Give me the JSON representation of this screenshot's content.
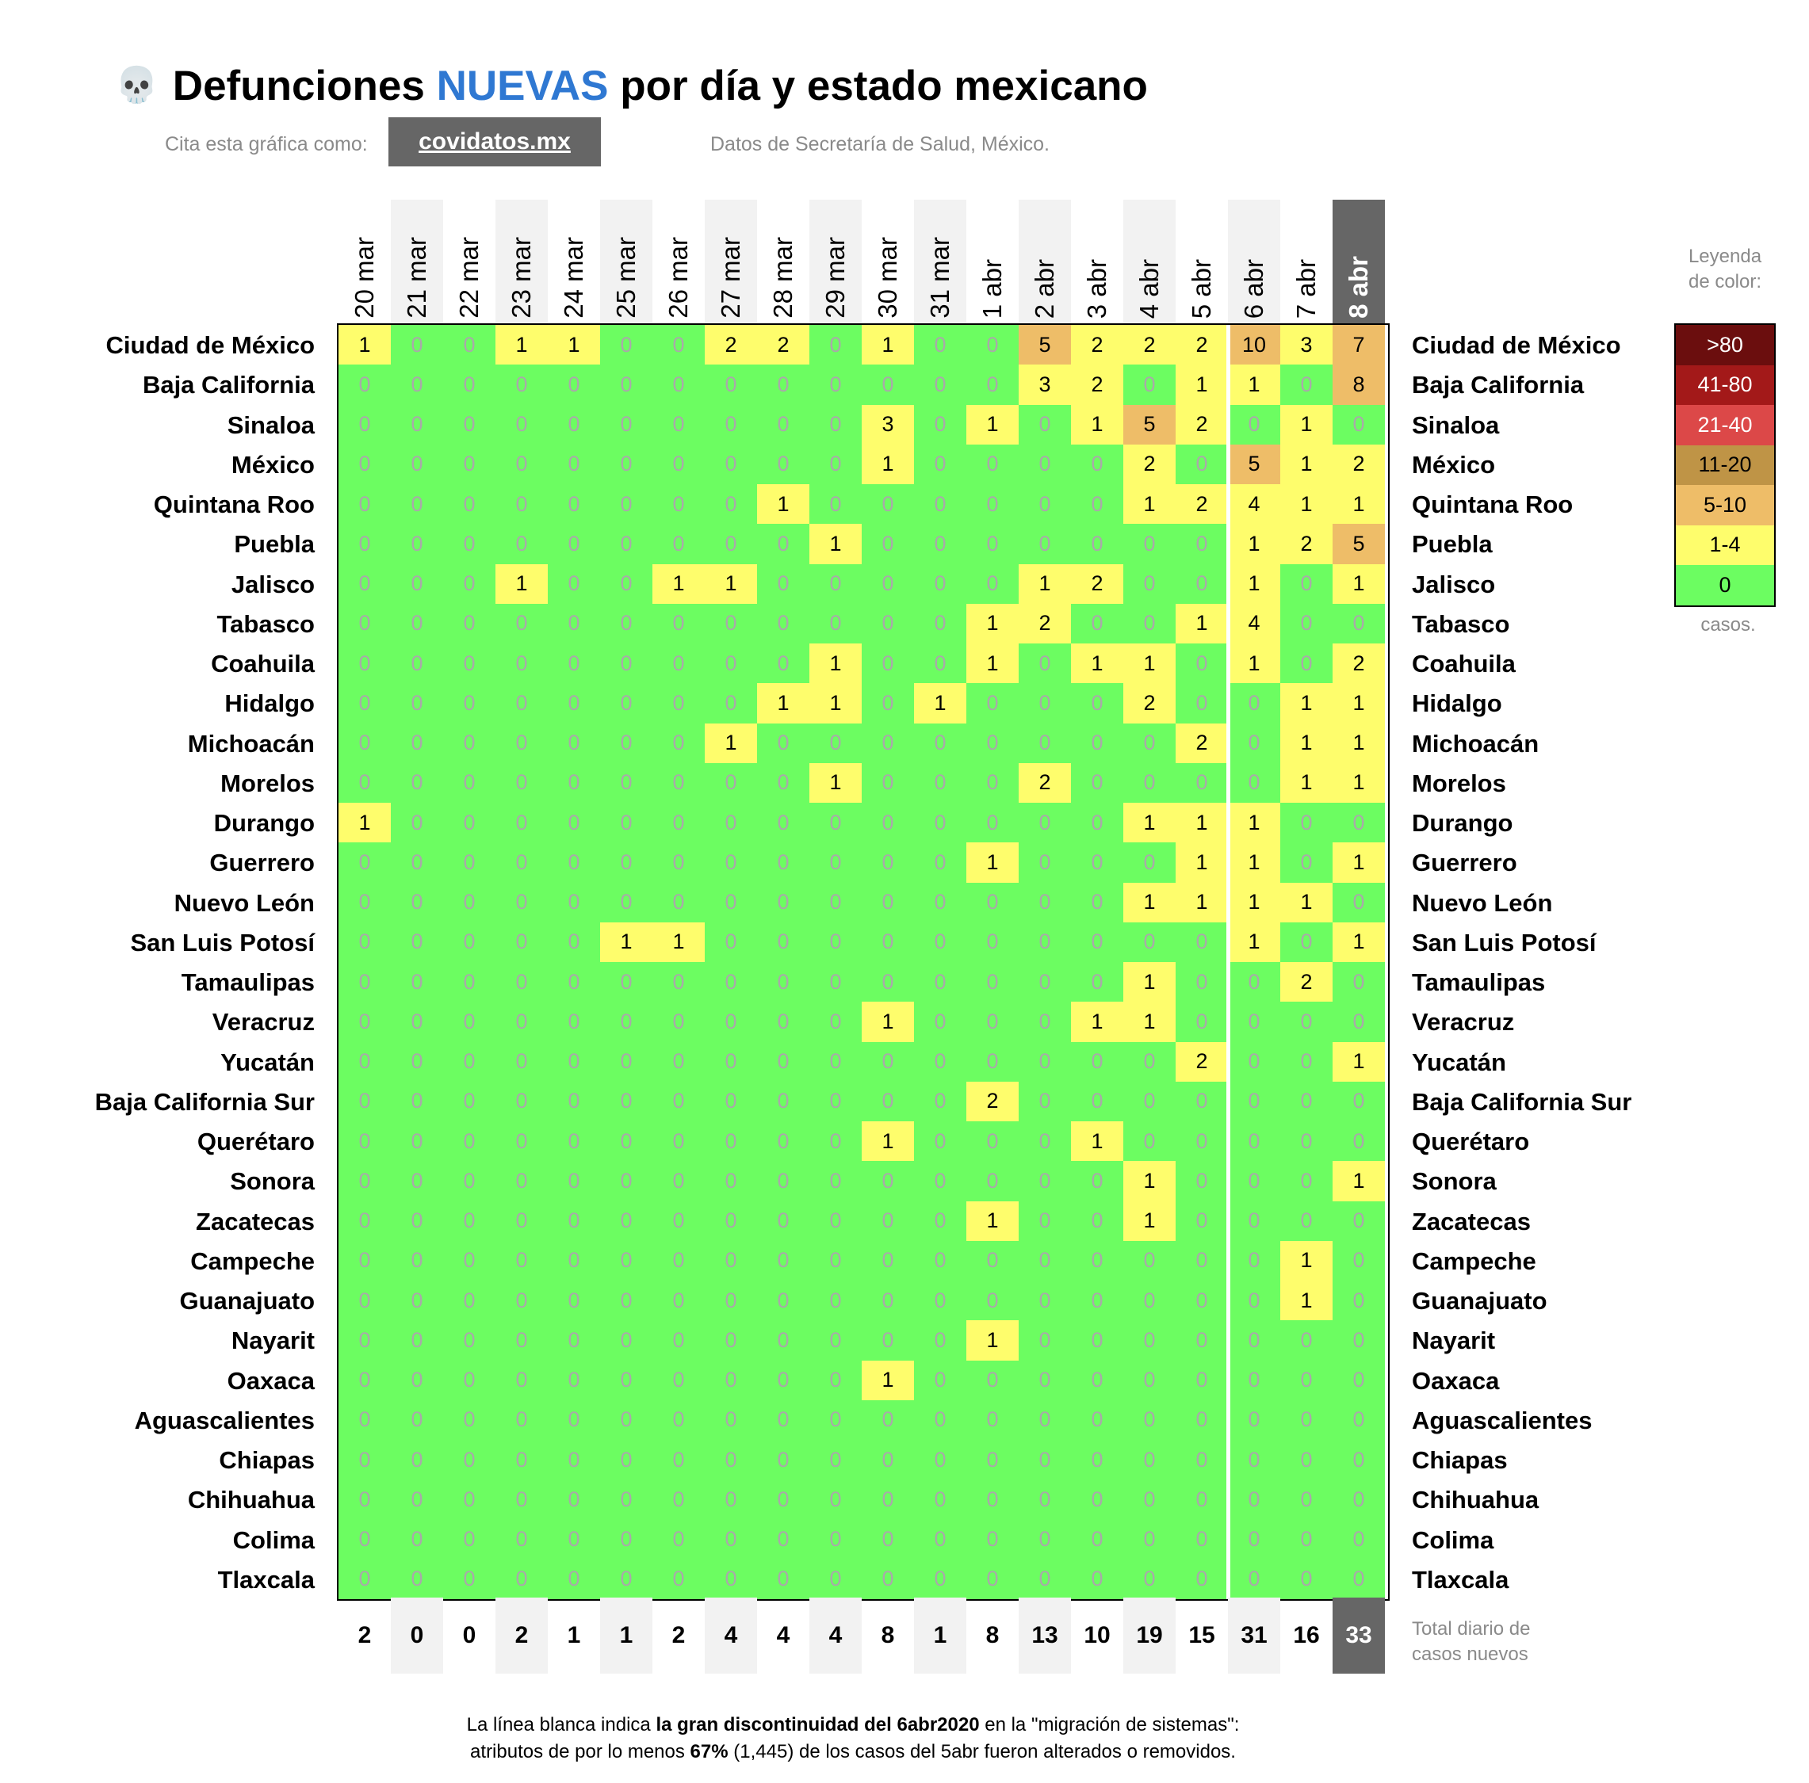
{
  "title": {
    "icon": "skull-icon",
    "glyph": "💀",
    "pre": "Defunciones ",
    "highlight": "NUEVAS",
    "post": " por día y estado mexicano"
  },
  "cite_label": "Cita esta gráfica como:",
  "cite_link": "covidatos.mx",
  "source": "Datos de Secretaría de Salud, México.",
  "legend": {
    "title_lines": [
      "Leyenda",
      "de color:"
    ],
    "footer": "casos.",
    "items": [
      {
        "label": ">80",
        "color": "#6b0e0e",
        "text_color": "#ffffff"
      },
      {
        "label": "41-80",
        "color": "#a31919",
        "text_color": "#ffffff"
      },
      {
        "label": "21-40",
        "color": "#dc4848",
        "text_color": "#ffffff"
      },
      {
        "label": "11-20",
        "color": "#bf9446",
        "text_color": "#000000"
      },
      {
        "label": "5-10",
        "color": "#eebd68",
        "text_color": "#000000"
      },
      {
        "label": "1-4",
        "color": "#fefd6c",
        "text_color": "#000000"
      },
      {
        "label": "0",
        "color": "#6cfd61",
        "text_color": "#000000"
      }
    ]
  },
  "total_label_lines": [
    "Total diario de",
    "casos nuevos"
  ],
  "footnote": {
    "line1_pre": "La línea blanca indica ",
    "line1_bold": "la gran discontinuidad del 6abr2020",
    "line1_post": " en la \"migración de sistemas\":",
    "line2_pre": "atributos de por lo menos ",
    "line2_bold": "67%",
    "line2_post": " (1,445) de los casos del 5abr fueron alterados o removidos."
  },
  "chart_data": {
    "type": "heatmap",
    "x": [
      "20 mar",
      "21 mar",
      "22 mar",
      "23 mar",
      "24 mar",
      "25 mar",
      "26 mar",
      "27 mar",
      "28 mar",
      "29 mar",
      "30 mar",
      "31 mar",
      "1 abr",
      "2 abr",
      "3 abr",
      "4 abr",
      "5 abr",
      "6 abr",
      "7 abr",
      "8 abr"
    ],
    "y": [
      "Ciudad de México",
      "Baja California",
      "Sinaloa",
      "México",
      "Quintana Roo",
      "Puebla",
      "Jalisco",
      "Tabasco",
      "Coahuila",
      "Hidalgo",
      "Michoacán",
      "Morelos",
      "Durango",
      "Guerrero",
      "Nuevo León",
      "San Luis Potosí",
      "Tamaulipas",
      "Veracruz",
      "Yucatán",
      "Baja California Sur",
      "Querétaro",
      "Sonora",
      "Zacatecas",
      "Campeche",
      "Guanajuato",
      "Nayarit",
      "Oaxaca",
      "Aguascalientes",
      "Chiapas",
      "Chihuahua",
      "Colima",
      "Tlaxcala"
    ],
    "values": [
      [
        1,
        0,
        0,
        1,
        1,
        0,
        0,
        2,
        2,
        0,
        1,
        0,
        0,
        5,
        2,
        2,
        2,
        10,
        3,
        7
      ],
      [
        0,
        0,
        0,
        0,
        0,
        0,
        0,
        0,
        0,
        0,
        0,
        0,
        0,
        3,
        2,
        0,
        1,
        1,
        0,
        8
      ],
      [
        0,
        0,
        0,
        0,
        0,
        0,
        0,
        0,
        0,
        0,
        3,
        0,
        1,
        0,
        1,
        5,
        2,
        0,
        1,
        0
      ],
      [
        0,
        0,
        0,
        0,
        0,
        0,
        0,
        0,
        0,
        0,
        1,
        0,
        0,
        0,
        0,
        2,
        0,
        5,
        1,
        2
      ],
      [
        0,
        0,
        0,
        0,
        0,
        0,
        0,
        0,
        1,
        0,
        0,
        0,
        0,
        0,
        0,
        1,
        2,
        4,
        1,
        1
      ],
      [
        0,
        0,
        0,
        0,
        0,
        0,
        0,
        0,
        0,
        1,
        0,
        0,
        0,
        0,
        0,
        0,
        0,
        1,
        2,
        5
      ],
      [
        0,
        0,
        0,
        1,
        0,
        0,
        1,
        1,
        0,
        0,
        0,
        0,
        0,
        1,
        2,
        0,
        0,
        1,
        0,
        1
      ],
      [
        0,
        0,
        0,
        0,
        0,
        0,
        0,
        0,
        0,
        0,
        0,
        0,
        1,
        2,
        0,
        0,
        1,
        4,
        0,
        0
      ],
      [
        0,
        0,
        0,
        0,
        0,
        0,
        0,
        0,
        0,
        1,
        0,
        0,
        1,
        0,
        1,
        1,
        0,
        1,
        0,
        2
      ],
      [
        0,
        0,
        0,
        0,
        0,
        0,
        0,
        0,
        1,
        1,
        0,
        1,
        0,
        0,
        0,
        2,
        0,
        0,
        1,
        1
      ],
      [
        0,
        0,
        0,
        0,
        0,
        0,
        0,
        1,
        0,
        0,
        0,
        0,
        0,
        0,
        0,
        0,
        2,
        0,
        1,
        1
      ],
      [
        0,
        0,
        0,
        0,
        0,
        0,
        0,
        0,
        0,
        1,
        0,
        0,
        0,
        2,
        0,
        0,
        0,
        0,
        1,
        1
      ],
      [
        1,
        0,
        0,
        0,
        0,
        0,
        0,
        0,
        0,
        0,
        0,
        0,
        0,
        0,
        0,
        1,
        1,
        1,
        0,
        0
      ],
      [
        0,
        0,
        0,
        0,
        0,
        0,
        0,
        0,
        0,
        0,
        0,
        0,
        1,
        0,
        0,
        0,
        1,
        1,
        0,
        1
      ],
      [
        0,
        0,
        0,
        0,
        0,
        0,
        0,
        0,
        0,
        0,
        0,
        0,
        0,
        0,
        0,
        1,
        1,
        1,
        1,
        0
      ],
      [
        0,
        0,
        0,
        0,
        0,
        1,
        1,
        0,
        0,
        0,
        0,
        0,
        0,
        0,
        0,
        0,
        0,
        1,
        0,
        1
      ],
      [
        0,
        0,
        0,
        0,
        0,
        0,
        0,
        0,
        0,
        0,
        0,
        0,
        0,
        0,
        0,
        1,
        0,
        0,
        2,
        0
      ],
      [
        0,
        0,
        0,
        0,
        0,
        0,
        0,
        0,
        0,
        0,
        1,
        0,
        0,
        0,
        1,
        1,
        0,
        0,
        0,
        0
      ],
      [
        0,
        0,
        0,
        0,
        0,
        0,
        0,
        0,
        0,
        0,
        0,
        0,
        0,
        0,
        0,
        0,
        2,
        0,
        0,
        1
      ],
      [
        0,
        0,
        0,
        0,
        0,
        0,
        0,
        0,
        0,
        0,
        0,
        0,
        2,
        0,
        0,
        0,
        0,
        0,
        0,
        0
      ],
      [
        0,
        0,
        0,
        0,
        0,
        0,
        0,
        0,
        0,
        0,
        1,
        0,
        0,
        0,
        1,
        0,
        0,
        0,
        0,
        0
      ],
      [
        0,
        0,
        0,
        0,
        0,
        0,
        0,
        0,
        0,
        0,
        0,
        0,
        0,
        0,
        0,
        1,
        0,
        0,
        0,
        1
      ],
      [
        0,
        0,
        0,
        0,
        0,
        0,
        0,
        0,
        0,
        0,
        0,
        0,
        1,
        0,
        0,
        1,
        0,
        0,
        0,
        0
      ],
      [
        0,
        0,
        0,
        0,
        0,
        0,
        0,
        0,
        0,
        0,
        0,
        0,
        0,
        0,
        0,
        0,
        0,
        0,
        1,
        0
      ],
      [
        0,
        0,
        0,
        0,
        0,
        0,
        0,
        0,
        0,
        0,
        0,
        0,
        0,
        0,
        0,
        0,
        0,
        0,
        1,
        0
      ],
      [
        0,
        0,
        0,
        0,
        0,
        0,
        0,
        0,
        0,
        0,
        0,
        0,
        1,
        0,
        0,
        0,
        0,
        0,
        0,
        0
      ],
      [
        0,
        0,
        0,
        0,
        0,
        0,
        0,
        0,
        0,
        0,
        1,
        0,
        0,
        0,
        0,
        0,
        0,
        0,
        0,
        0
      ],
      [
        0,
        0,
        0,
        0,
        0,
        0,
        0,
        0,
        0,
        0,
        0,
        0,
        0,
        0,
        0,
        0,
        0,
        0,
        0,
        0
      ],
      [
        0,
        0,
        0,
        0,
        0,
        0,
        0,
        0,
        0,
        0,
        0,
        0,
        0,
        0,
        0,
        0,
        0,
        0,
        0,
        0
      ],
      [
        0,
        0,
        0,
        0,
        0,
        0,
        0,
        0,
        0,
        0,
        0,
        0,
        0,
        0,
        0,
        0,
        0,
        0,
        0,
        0
      ],
      [
        0,
        0,
        0,
        0,
        0,
        0,
        0,
        0,
        0,
        0,
        0,
        0,
        0,
        0,
        0,
        0,
        0,
        0,
        0,
        0
      ],
      [
        0,
        0,
        0,
        0,
        0,
        0,
        0,
        0,
        0,
        0,
        0,
        0,
        0,
        0,
        0,
        0,
        0,
        0,
        0,
        0
      ]
    ],
    "totals": [
      2,
      0,
      0,
      2,
      1,
      1,
      2,
      4,
      4,
      4,
      8,
      1,
      8,
      13,
      10,
      19,
      15,
      31,
      16,
      33
    ],
    "discontinuity_after": "5 abr",
    "highlighted_column": "8 abr",
    "shaded_columns": [
      "21 mar",
      "23 mar",
      "25 mar",
      "27 mar",
      "29 mar",
      "31 mar",
      "2 abr",
      "4 abr",
      "6 abr"
    ],
    "color_bins": [
      {
        "min": 0,
        "max": 0,
        "color": "#6cfd61"
      },
      {
        "min": 1,
        "max": 4,
        "color": "#fefd6c"
      },
      {
        "min": 5,
        "max": 10,
        "color": "#eebd68"
      },
      {
        "min": 11,
        "max": 20,
        "color": "#bf9446"
      },
      {
        "min": 21,
        "max": 40,
        "color": "#dc4848"
      },
      {
        "min": 41,
        "max": 80,
        "color": "#a31919"
      },
      {
        "min": 81,
        "max": null,
        "color": "#6b0e0e"
      }
    ]
  }
}
